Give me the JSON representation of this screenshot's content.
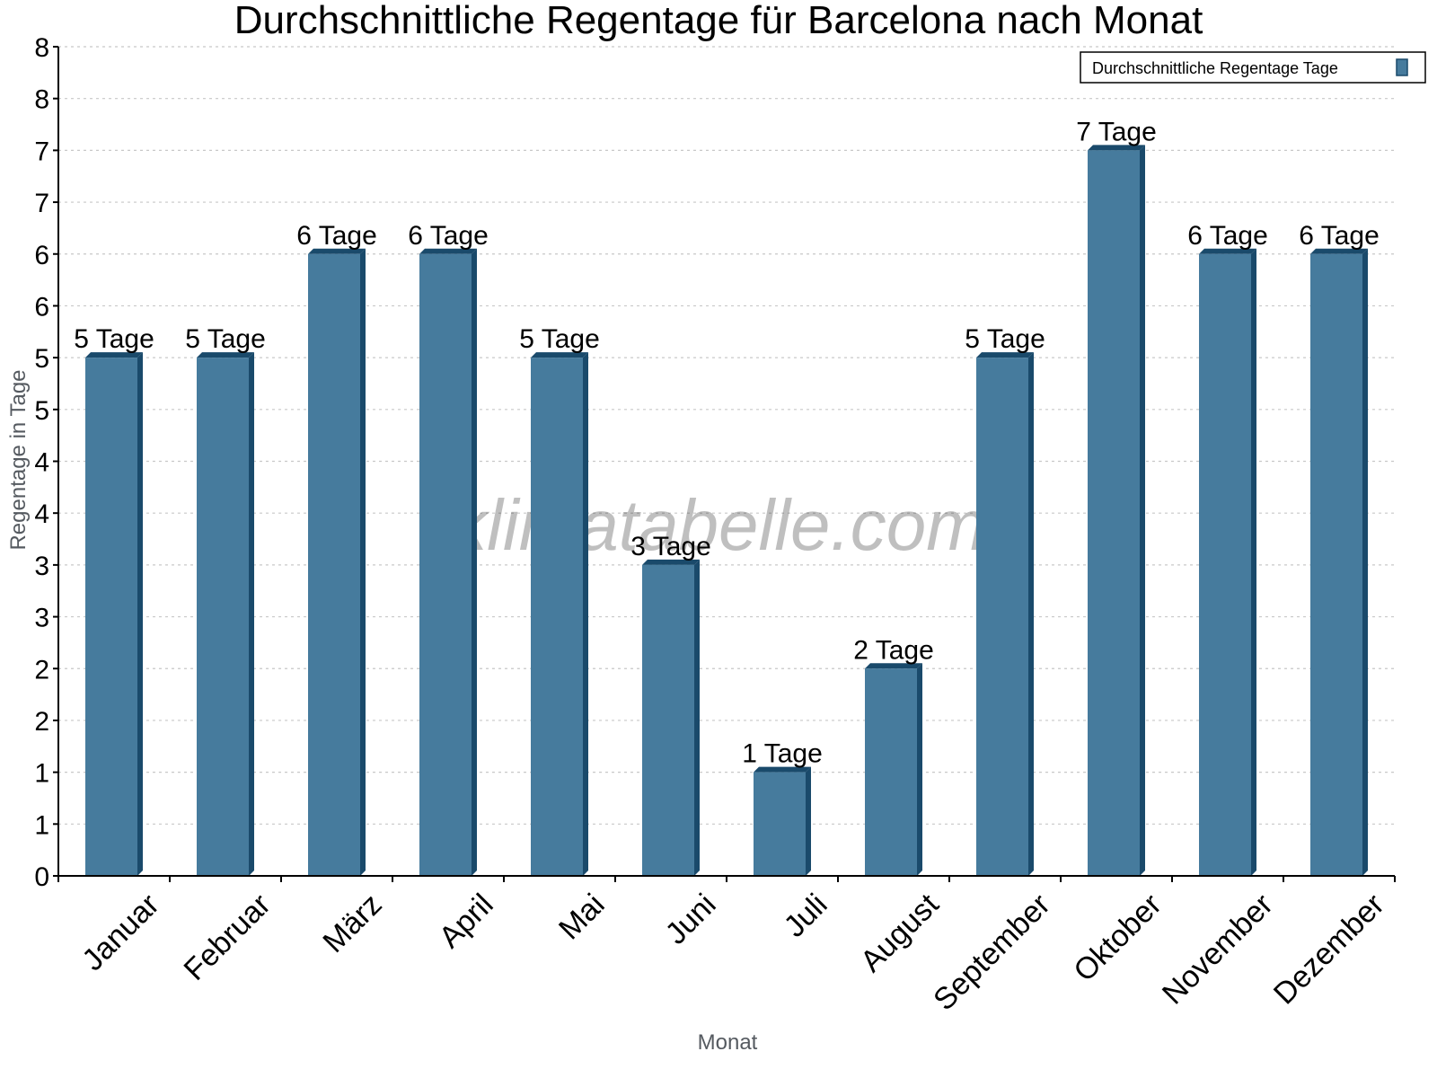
{
  "chart_data": {
    "type": "bar",
    "title": "Durchschnittliche Regentage für Barcelona nach Monat",
    "xlabel": "Monat",
    "ylabel": "Regentage in Tage",
    "categories": [
      "Januar",
      "Februar",
      "März",
      "April",
      "Mai",
      "Juni",
      "Juli",
      "August",
      "September",
      "Oktober",
      "November",
      "Dezember"
    ],
    "series": [
      {
        "name": "Durchschnittliche Regentage Tage",
        "values": [
          5,
          5,
          6,
          6,
          5,
          3,
          1,
          2,
          5,
          7,
          6,
          6
        ],
        "data_labels": [
          "5 Tage",
          "5 Tage",
          "6 Tage",
          "6 Tage",
          "5 Tage",
          "3 Tage",
          "1 Tage",
          "2 Tage",
          "5 Tage",
          "7 Tage",
          "6 Tage",
          "6 Tage"
        ],
        "color": "#467b9d",
        "side_color": "#1a4a6b"
      }
    ],
    "ylim": [
      0,
      8
    ],
    "yticks": [
      0,
      0.5,
      1,
      1.5,
      2,
      2.5,
      3,
      3.5,
      4,
      4.5,
      5,
      5.5,
      6,
      6.5,
      7,
      7.5,
      8
    ],
    "ytick_labels": [
      "0",
      "1",
      "1",
      "2",
      "2",
      "3",
      "3",
      "4",
      "4",
      "5",
      "5",
      "6",
      "6",
      "7",
      "7",
      "8",
      "8"
    ],
    "grid": true,
    "legend_position": "top-right",
    "watermark": "klimatabelle.com"
  }
}
